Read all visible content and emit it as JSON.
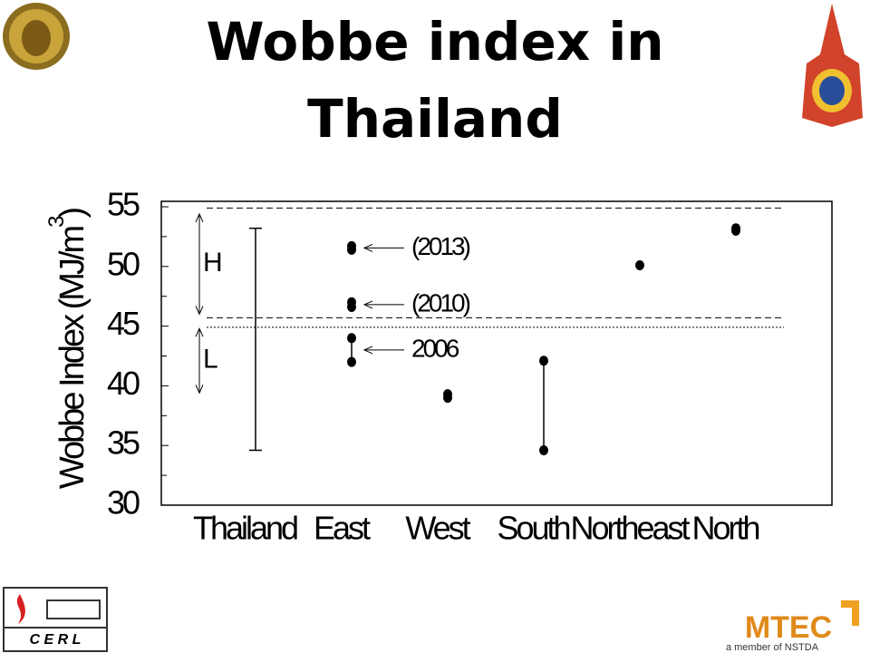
{
  "title": "Wobbe index in Thailand",
  "logos": {
    "cerl": "C E R L",
    "mtec": "MTEC",
    "mtec_sub": "a member of NSTDA"
  },
  "chart_data": {
    "type": "dot",
    "y_label": "Wobbe Index (MJ/m",
    "y_label_sup": "3",
    "y_label_end": ")",
    "categories": [
      "Thailand",
      "East",
      "West",
      "South",
      "Northeast",
      "North"
    ],
    "groups": [
      {
        "sets": [
          {
            "values": [
              34.6,
              53.2
            ],
            "style": "whisker"
          }
        ]
      },
      {
        "sets": [
          {
            "values": [
              51.7,
              51.4
            ],
            "label": "(2013)"
          },
          {
            "values": [
              47.0,
              46.6
            ],
            "label": "(2010)"
          },
          {
            "values": [
              44.0,
              42.0
            ],
            "label": "2006",
            "style": "linked"
          }
        ]
      },
      {
        "sets": [
          {
            "values": [
              39.3,
              39.0
            ]
          }
        ]
      },
      {
        "sets": [
          {
            "values": [
              42.1,
              34.6
            ],
            "style": "linked"
          }
        ]
      },
      {
        "sets": [
          {
            "values": [
              50.1
            ]
          }
        ]
      },
      {
        "sets": [
          {
            "values": [
              53.2,
              53.0
            ]
          }
        ]
      }
    ],
    "reference_lines": [
      {
        "value": 54.9,
        "style": "dashed"
      },
      {
        "value": 45.7,
        "style": "dashed"
      },
      {
        "value": 44.9,
        "style": "dotted"
      }
    ],
    "bands": [
      {
        "label": "H",
        "range": [
          46.0,
          54.4
        ]
      },
      {
        "label": "L",
        "range": [
          39.4,
          44.8
        ]
      }
    ],
    "ylim": [
      30,
      55
    ],
    "yticks": [
      30,
      35,
      40,
      45,
      50,
      55
    ],
    "yminorticks": [
      32.5,
      37.5,
      42.5,
      47.5,
      52.5
    ]
  }
}
